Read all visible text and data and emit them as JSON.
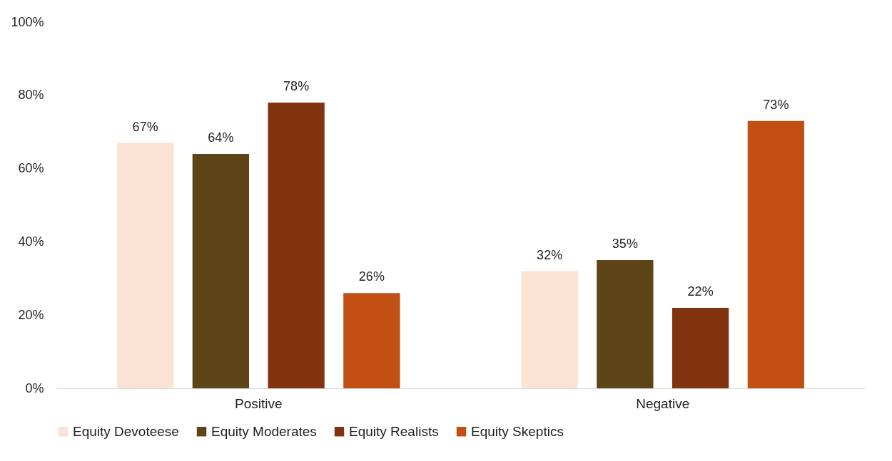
{
  "chart_data": {
    "type": "bar",
    "categories": [
      "Positive",
      "Negative"
    ],
    "series": [
      {
        "name": "Equity Devoteese",
        "color": "#fbe3d6",
        "values": [
          67,
          32
        ]
      },
      {
        "name": "Equity Moderates",
        "color": "#5e4518",
        "values": [
          64,
          35
        ]
      },
      {
        "name": "Equity Realists",
        "color": "#82330f",
        "values": [
          78,
          22
        ]
      },
      {
        "name": "Equity Skeptics",
        "color": "#c25014",
        "values": [
          26,
          73
        ]
      }
    ],
    "ylim": [
      0,
      100
    ],
    "yticks": [
      {
        "value": 0,
        "label": "0%"
      },
      {
        "value": 20,
        "label": "20%"
      },
      {
        "value": 40,
        "label": "40%"
      },
      {
        "value": 60,
        "label": "60%"
      },
      {
        "value": 80,
        "label": "80%"
      },
      {
        "value": 100,
        "label": "100%"
      }
    ],
    "value_labels": [
      [
        "67%",
        "32%"
      ],
      [
        "64%",
        "35%"
      ],
      [
        "78%",
        "22%"
      ],
      [
        "26%",
        "73%"
      ]
    ],
    "grid": false,
    "legend": "bottom"
  }
}
